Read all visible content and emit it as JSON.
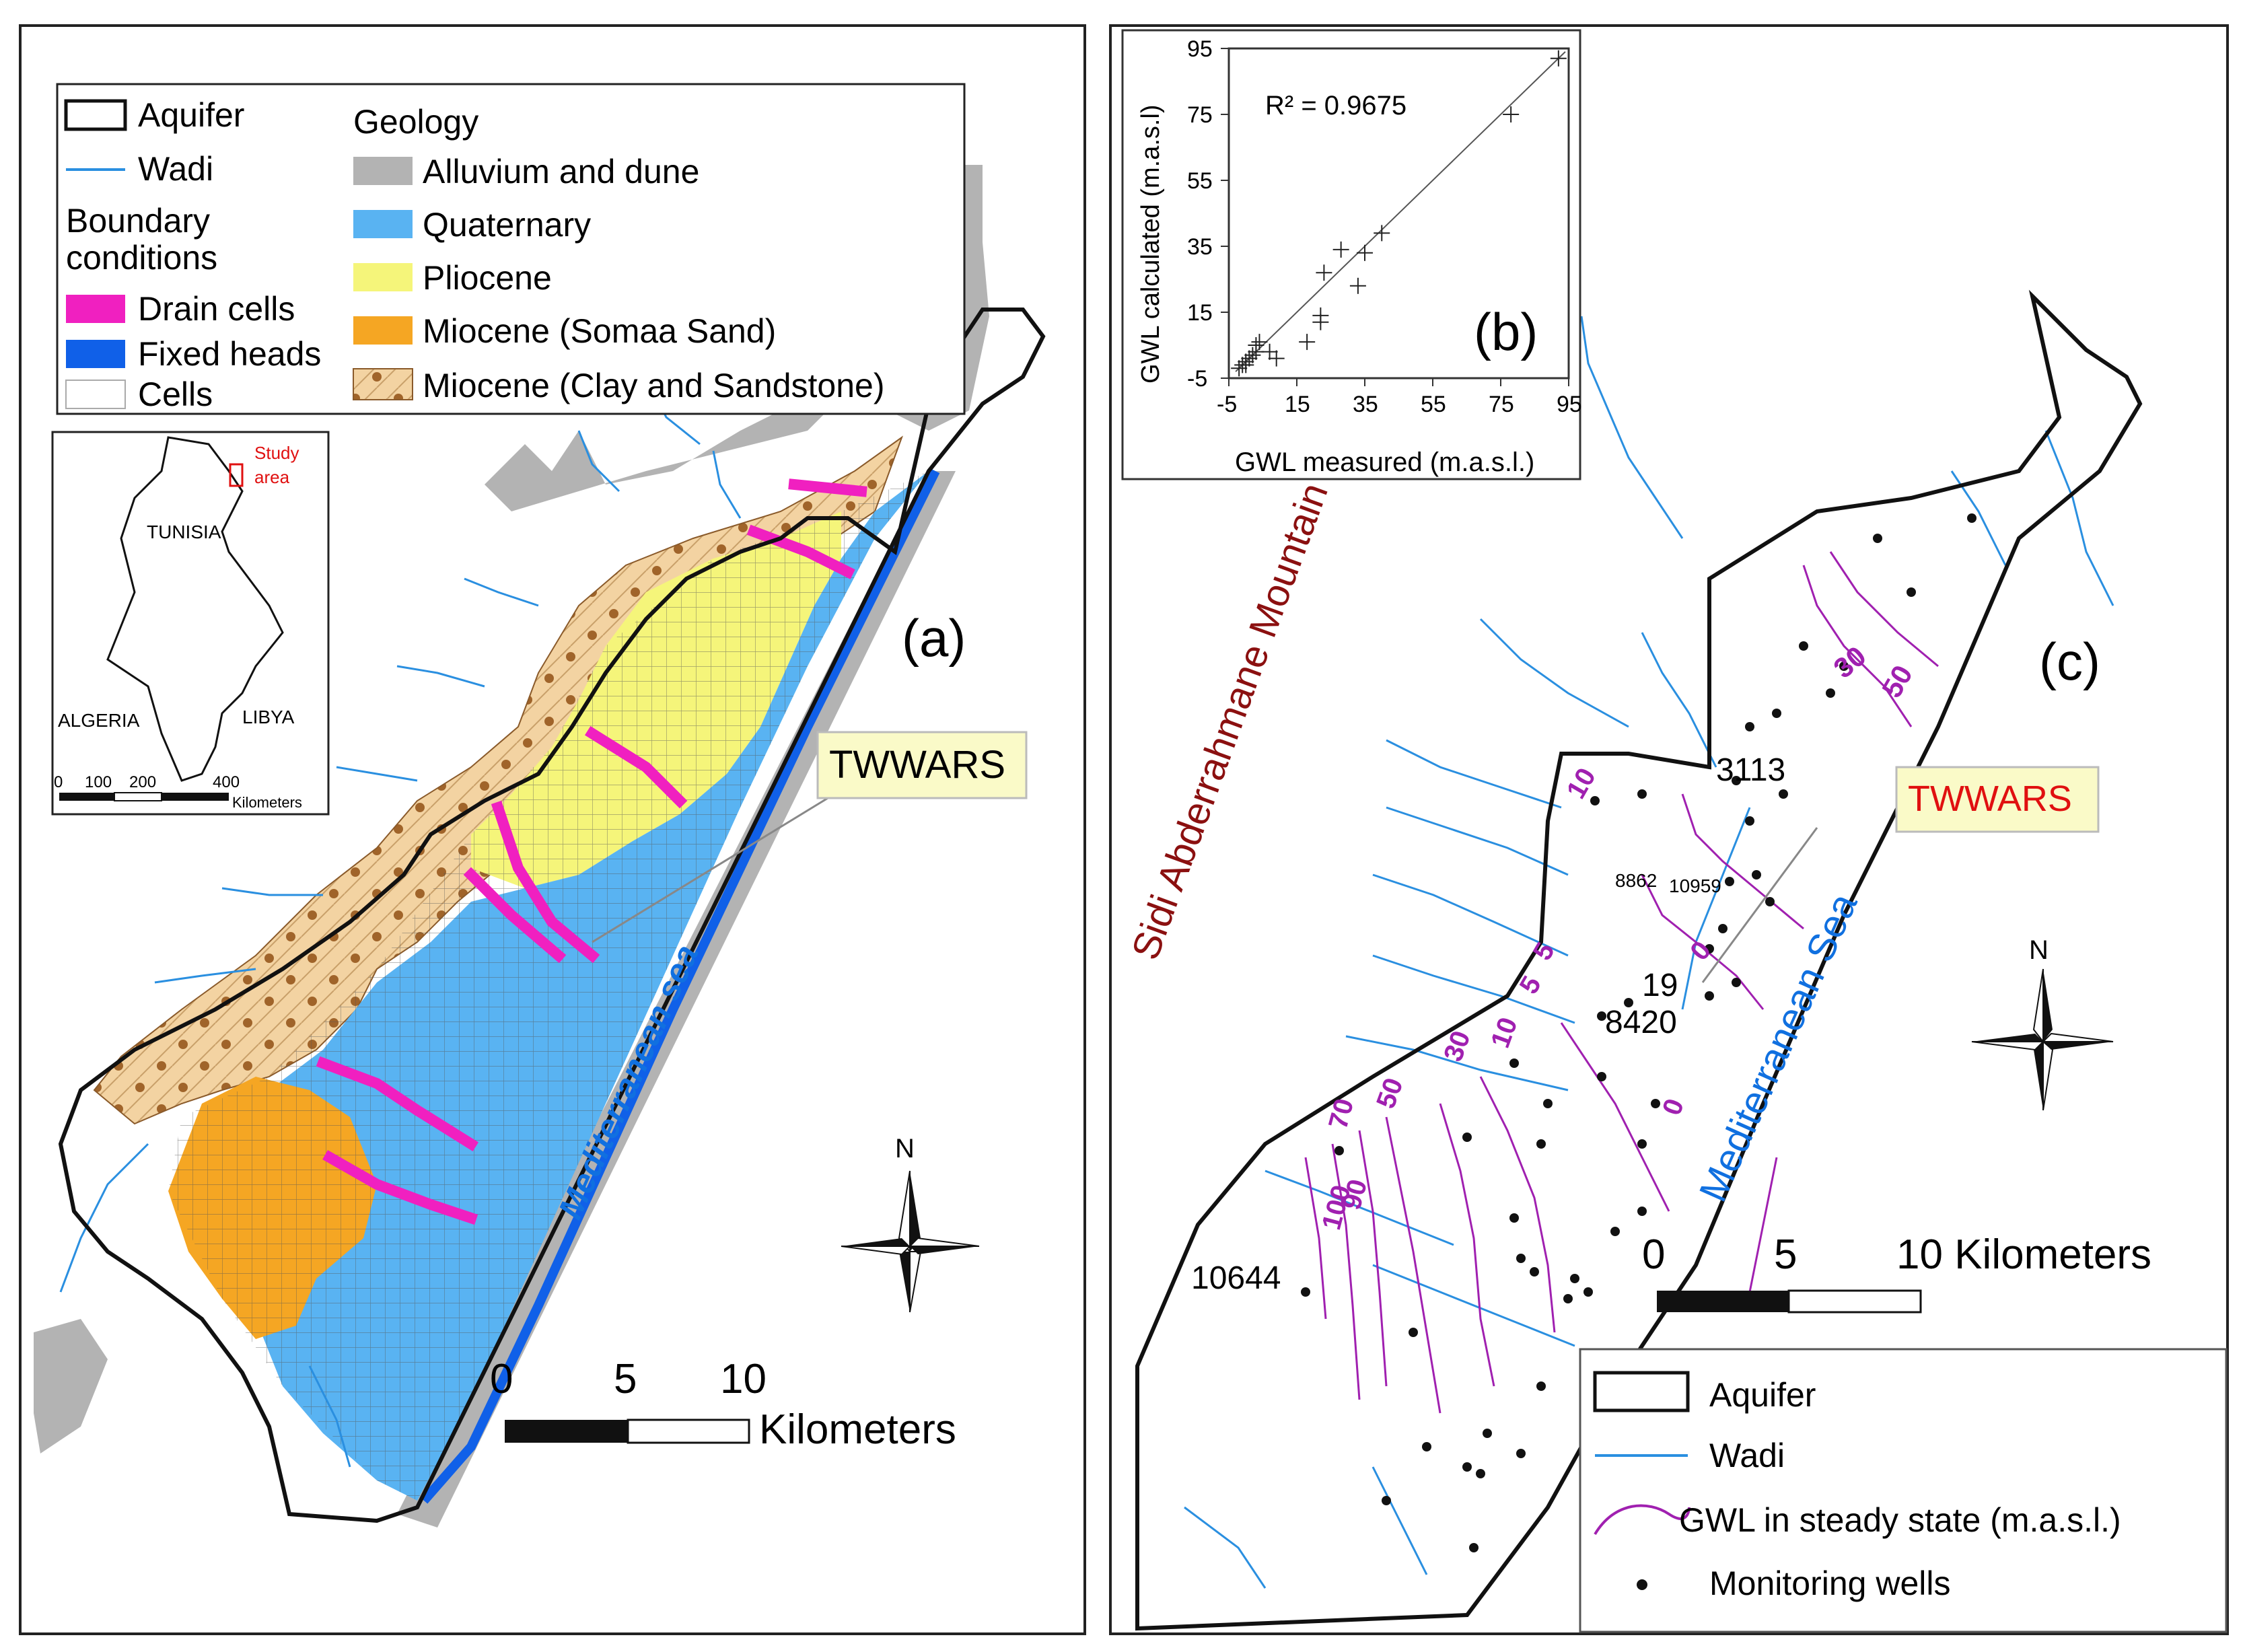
{
  "panel_a": {
    "label": "(a)",
    "legend": {
      "aquifer": "Aquifer",
      "wadi": "Wadi",
      "boundary_line1": "Boundary",
      "boundary_line2": "conditions",
      "drain": "Drain cells",
      "fixed": "Fixed heads",
      "cells": "Cells",
      "geology_title": "Geology",
      "alluvium": "Alluvium and dune",
      "quaternary": "Quaternary",
      "pliocene": "Pliocene",
      "miocene_sand": "Miocene (Somaa Sand)",
      "miocene_clay": "Miocene  (Clay and Sandstone)"
    },
    "inset": {
      "study1": "Study",
      "study2": "area",
      "tunisia": "TUNISIA",
      "algeria": "ALGERIA",
      "libya": "LIBYA",
      "s0": "0",
      "s100": "100",
      "s200": "200",
      "s400": "400",
      "km": "Kilometers"
    },
    "callout": "TWWARS",
    "sea": "Mediterranean sea",
    "north": "N",
    "scale": {
      "t0": "0",
      "t5": "5",
      "t10": "10",
      "unit": "Kilometers"
    }
  },
  "panel_b": {
    "label": "(b)",
    "r2": "R² = 0.9675",
    "xlabel": "GWL measured (m.a.s.l.)",
    "ylabel": "GWL calculated (m.a.s.l)",
    "ticks": [
      "-5",
      "15",
      "35",
      "55",
      "75",
      "95"
    ]
  },
  "chart_data": {
    "type": "scatter",
    "xlabel": "GWL measured (m.a.s.l.)",
    "ylabel": "GWL calculated (m.a.s.l)",
    "xlim": [
      -5,
      95
    ],
    "ylim": [
      -5,
      95
    ],
    "xticks": [
      -5,
      15,
      35,
      55,
      75,
      95
    ],
    "yticks": [
      -5,
      15,
      35,
      55,
      75,
      95
    ],
    "annotation": "R² = 0.9675",
    "points": [
      [
        -2,
        -2
      ],
      [
        -1,
        -1
      ],
      [
        0,
        -1
      ],
      [
        0,
        0
      ],
      [
        1,
        1
      ],
      [
        2,
        2
      ],
      [
        3,
        3
      ],
      [
        3,
        5
      ],
      [
        4,
        6
      ],
      [
        7,
        3
      ],
      [
        9,
        1
      ],
      [
        18,
        6
      ],
      [
        22,
        14
      ],
      [
        22,
        12
      ],
      [
        23,
        27
      ],
      [
        28,
        34
      ],
      [
        33,
        23
      ],
      [
        35,
        33
      ],
      [
        40,
        39
      ],
      [
        78,
        75
      ],
      [
        92,
        92
      ]
    ],
    "fit_line": [
      [
        -3,
        -3
      ],
      [
        94,
        94
      ]
    ]
  },
  "panel_c": {
    "label": "(c)",
    "mountain": "Sidi Abderrahmane Mountain",
    "sea": "Mediterranean Sea",
    "callout": "TWWARS",
    "north": "N",
    "wells": {
      "w3113": "3113",
      "w8862": "8862",
      "w10959": "10959",
      "w19": "19",
      "w8420": "8420",
      "w10644": "10644"
    },
    "contours": {
      "c30": "30",
      "c50a": "50",
      "c10a": "10",
      "c0a": "0",
      "c5a": "5",
      "c5b": "5",
      "c10b": "10",
      "c30b": "30",
      "c50b": "50",
      "c70": "70",
      "c90": "90",
      "c100": "100",
      "c0b": "0"
    },
    "scale": {
      "t0": "0",
      "t5": "5",
      "t10": "10 Kilometers"
    },
    "legend": {
      "aquifer": "Aquifer",
      "wadi": "Wadi",
      "gwl": "GWL in steady state (m.a.s.l.)",
      "wells": "Monitoring wells"
    }
  },
  "colors": {
    "alluvium": "#b3b3b3",
    "quaternary": "#59b3f2",
    "pliocene": "#f5f57a",
    "miocene_sand": "#f5a623",
    "miocene_clay": "#f3d3a2",
    "miocene_dots": "#a0642a",
    "drain": "#f020c0",
    "fixed": "#1060e8",
    "wadi": "#2a8fe0",
    "contour": "#a020b0",
    "callout_fill": "#fafac8",
    "mountain_text": "#8b1010",
    "sea_text": "#1070e0",
    "twwars_c": "#e01010"
  }
}
